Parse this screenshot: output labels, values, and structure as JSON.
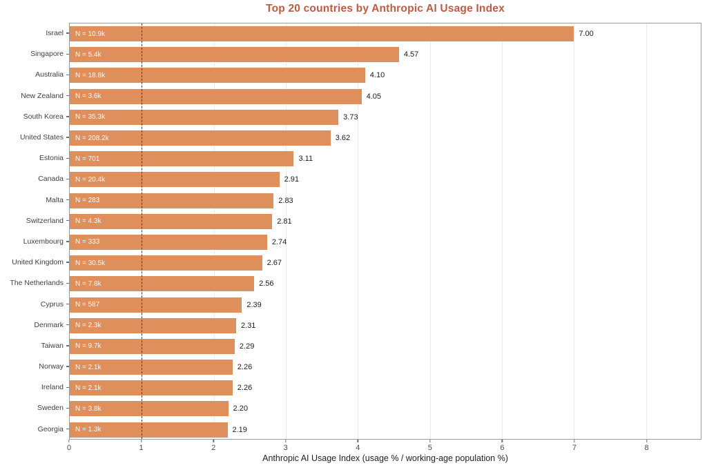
{
  "title": "Top 20 countries by Anthropic AI Usage Index",
  "colors": {
    "bar": "#de8f5c",
    "title": "#c05b43",
    "reference_line": "#3f3f3f",
    "gridline": "#ebebeb",
    "plot_border": "#9a9a9a",
    "n_label": "rgba(255,255,255,0.92)",
    "value_label": "#1b1b1b",
    "axis_label": "#3f3f3f"
  },
  "chart_data": {
    "type": "bar",
    "orientation": "horizontal",
    "title": "Top 20 countries by Anthropic AI Usage Index",
    "xlabel": "Anthropic AI Usage Index (usage % / working-age population %)",
    "ylabel": "",
    "xlim": [
      0,
      8.76
    ],
    "xticks": [
      0,
      1,
      2,
      3,
      4,
      5,
      6,
      7,
      8
    ],
    "grid": "vertical-light",
    "reference_line_x": 1,
    "legend": "none",
    "categories": [
      "Israel",
      "Singapore",
      "Australia",
      "New Zealand",
      "South Korea",
      "United States",
      "Estonia",
      "Canada",
      "Malta",
      "Switzerland",
      "Luxembourg",
      "United Kingdom",
      "The Netherlands",
      "Cyprus",
      "Denmark",
      "Taiwan",
      "Norway",
      "Ireland",
      "Sweden",
      "Georgia"
    ],
    "values": [
      7.0,
      4.57,
      4.1,
      4.05,
      3.73,
      3.62,
      3.11,
      2.91,
      2.83,
      2.81,
      2.74,
      2.67,
      2.56,
      2.39,
      2.31,
      2.29,
      2.26,
      2.26,
      2.2,
      2.19
    ],
    "bar_labels": [
      "7.00",
      "4.57",
      "4.10",
      "4.05",
      "3.73",
      "3.62",
      "3.11",
      "2.91",
      "2.83",
      "2.81",
      "2.74",
      "2.67",
      "2.56",
      "2.39",
      "2.31",
      "2.29",
      "2.26",
      "2.26",
      "2.20",
      "2.19"
    ],
    "n_labels": [
      "N = 10.9k",
      "N = 5.4k",
      "N = 18.8k",
      "N = 3.6k",
      "N = 35.3k",
      "N = 208.2k",
      "N = 701",
      "N = 20.4k",
      "N = 283",
      "N = 4.3k",
      "N = 333",
      "N = 30.5k",
      "N = 7.8k",
      "N = 587",
      "N = 2.3k",
      "N = 9.7k",
      "N = 2.1k",
      "N = 2.1k",
      "N = 3.8k",
      "N = 1.3k"
    ]
  }
}
